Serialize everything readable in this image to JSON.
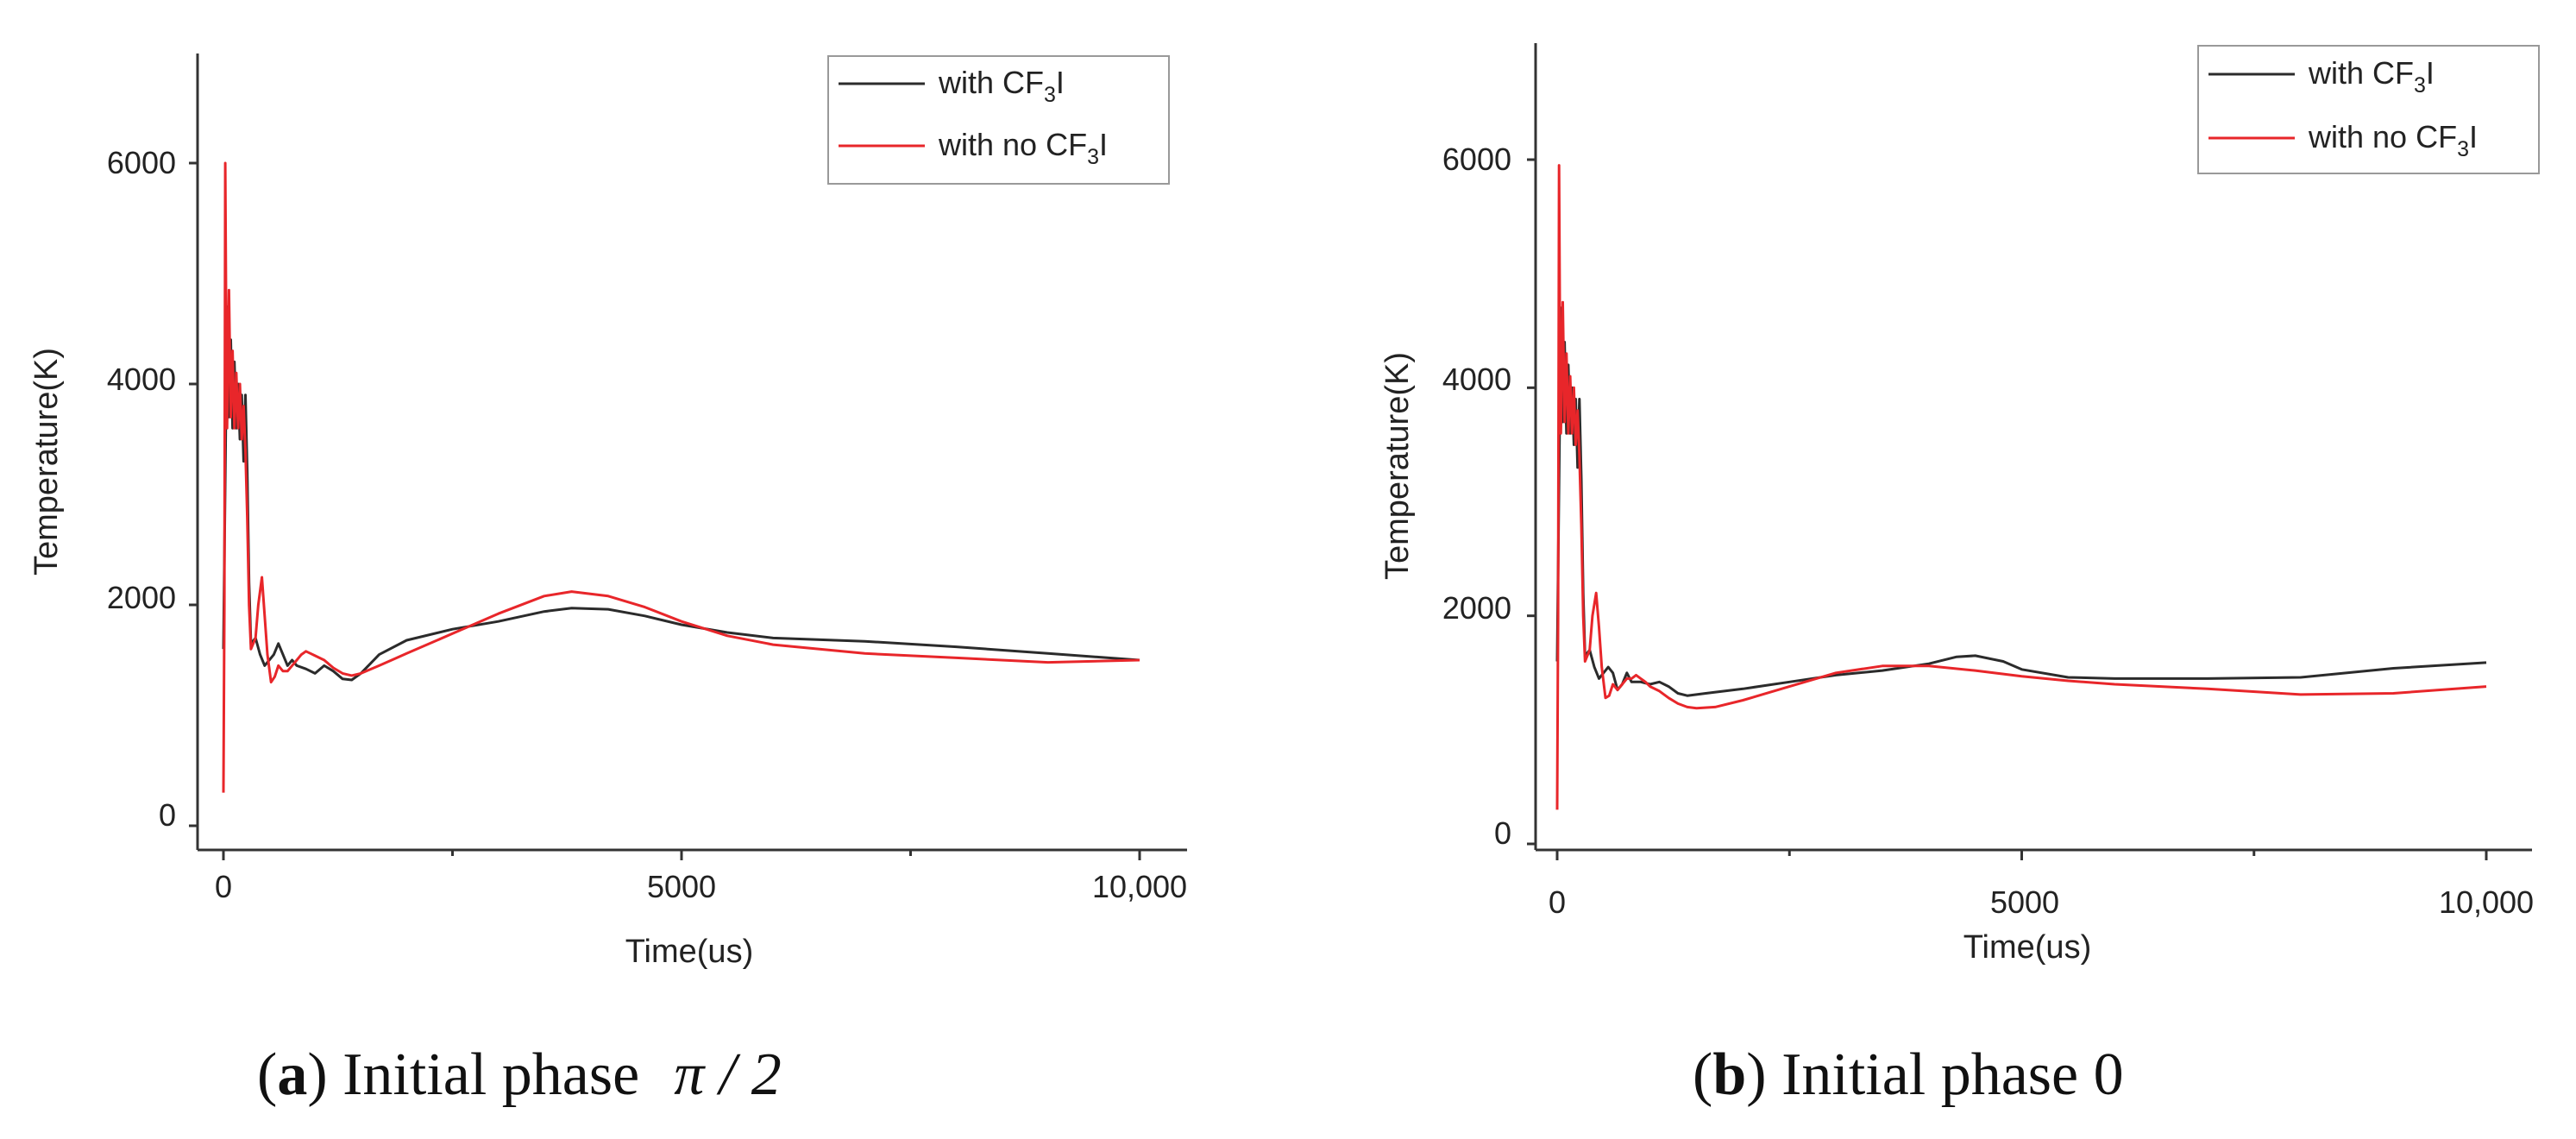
{
  "chart_data": [
    {
      "type": "line",
      "caption": {
        "label": "a",
        "text": "Initial phase",
        "phase": "π / 2"
      },
      "xlabel": "Time(us)",
      "ylabel": "Temperature(K)",
      "xlim": [
        -300,
        10500
      ],
      "ylim": [
        -300,
        7000
      ],
      "xticks": [
        0,
        5000,
        10000
      ],
      "xtick_labels": [
        "0",
        "5000",
        "10,000"
      ],
      "yticks": [
        0,
        2000,
        4000,
        6000
      ],
      "ytick_labels": [
        "0",
        "2000",
        "4000",
        "6000"
      ],
      "legend": {
        "position": "top-right",
        "entries": [
          {
            "prefix": "with CF",
            "sub": "3",
            "suffix": "I"
          },
          {
            "prefix": "with no CF",
            "sub": "3",
            "suffix": "I"
          }
        ]
      },
      "series": [
        {
          "name": "with CF3I",
          "color": "#2b2b2b",
          "x": [
            0,
            40,
            60,
            80,
            100,
            120,
            140,
            160,
            180,
            200,
            220,
            240,
            260,
            280,
            300,
            350,
            400,
            450,
            500,
            550,
            600,
            650,
            700,
            750,
            800,
            900,
            1000,
            1100,
            1200,
            1300,
            1400,
            1500,
            1700,
            2000,
            2500,
            3000,
            3500,
            3800,
            4200,
            4600,
            5000,
            5500,
            6000,
            7000,
            8000,
            9000,
            10000
          ],
          "y": [
            1600,
            4700,
            3700,
            4400,
            3600,
            4200,
            3600,
            4000,
            3500,
            3900,
            3300,
            3900,
            3200,
            2200,
            1650,
            1700,
            1550,
            1450,
            1500,
            1550,
            1650,
            1550,
            1450,
            1500,
            1450,
            1420,
            1380,
            1450,
            1400,
            1330,
            1320,
            1380,
            1550,
            1680,
            1780,
            1850,
            1940,
            1970,
            1960,
            1900,
            1820,
            1750,
            1700,
            1670,
            1620,
            1560,
            1500
          ]
        },
        {
          "name": "with no CF3I",
          "color": "#e8262a",
          "x": [
            0,
            10,
            20,
            30,
            40,
            60,
            80,
            100,
            120,
            140,
            160,
            180,
            200,
            220,
            240,
            260,
            280,
            300,
            350,
            380,
            420,
            450,
            480,
            520,
            560,
            600,
            650,
            700,
            750,
            800,
            850,
            900,
            950,
            1000,
            1100,
            1200,
            1300,
            1400,
            1500,
            1700,
            2000,
            2500,
            3000,
            3500,
            3800,
            4200,
            4600,
            5000,
            5500,
            6000,
            7000,
            8000,
            9000,
            10000
          ],
          "y": [
            300,
            2000,
            6000,
            4500,
            3600,
            4850,
            3700,
            4300,
            3600,
            4100,
            3600,
            4000,
            3500,
            3800,
            3400,
            2800,
            2000,
            1600,
            1700,
            2000,
            2250,
            1900,
            1550,
            1300,
            1350,
            1450,
            1400,
            1400,
            1450,
            1500,
            1550,
            1580,
            1560,
            1540,
            1500,
            1430,
            1380,
            1360,
            1380,
            1450,
            1560,
            1740,
            1920,
            2080,
            2120,
            2080,
            1980,
            1850,
            1720,
            1640,
            1560,
            1520,
            1480,
            1500
          ]
        }
      ]
    },
    {
      "type": "line",
      "caption": {
        "label": "b",
        "text": "Initial phase 0"
      },
      "xlabel": "Time(us)",
      "ylabel": "Temperature(K)",
      "xlim": [
        -300,
        10500
      ],
      "ylim": [
        -300,
        7000
      ],
      "xticks": [
        0,
        5000,
        10000
      ],
      "xtick_labels": [
        "0",
        "5000",
        "10,000"
      ],
      "yticks": [
        0,
        2000,
        4000,
        6000
      ],
      "ytick_labels": [
        "0",
        "2000",
        "4000",
        "6000"
      ],
      "legend": {
        "position": "top-right",
        "entries": [
          {
            "prefix": "with CF",
            "sub": "3",
            "suffix": "I"
          },
          {
            "prefix": "with no CF",
            "sub": "3",
            "suffix": "I"
          }
        ]
      },
      "series": [
        {
          "name": "with CF3I",
          "color": "#2b2b2b",
          "x": [
            0,
            40,
            60,
            80,
            100,
            120,
            140,
            160,
            180,
            200,
            220,
            240,
            260,
            280,
            300,
            350,
            400,
            450,
            500,
            550,
            600,
            650,
            700,
            750,
            800,
            900,
            1000,
            1100,
            1200,
            1300,
            1400,
            1600,
            2000,
            2500,
            3000,
            3500,
            4000,
            4300,
            4500,
            4800,
            5000,
            5500,
            6000,
            7000,
            8000,
            9000,
            10000
          ],
          "y": [
            1600,
            4700,
            3700,
            4400,
            3600,
            4200,
            3600,
            4000,
            3500,
            3900,
            3300,
            3900,
            3200,
            2200,
            1650,
            1700,
            1550,
            1450,
            1500,
            1550,
            1500,
            1350,
            1400,
            1500,
            1420,
            1420,
            1400,
            1420,
            1380,
            1320,
            1300,
            1320,
            1360,
            1420,
            1480,
            1520,
            1580,
            1640,
            1650,
            1600,
            1530,
            1460,
            1450,
            1450,
            1460,
            1540,
            1590
          ]
        },
        {
          "name": "with no CF3I",
          "color": "#e8262a",
          "x": [
            0,
            10,
            20,
            30,
            40,
            60,
            80,
            100,
            120,
            140,
            160,
            180,
            200,
            220,
            240,
            260,
            280,
            300,
            350,
            380,
            420,
            450,
            480,
            520,
            560,
            600,
            650,
            700,
            750,
            800,
            850,
            900,
            950,
            1000,
            1100,
            1200,
            1300,
            1400,
            1500,
            1700,
            2000,
            2500,
            3000,
            3500,
            4000,
            4500,
            5000,
            5500,
            6000,
            7000,
            8000,
            9000,
            10000
          ],
          "y": [
            300,
            2000,
            5950,
            4500,
            3600,
            4750,
            3700,
            4300,
            3600,
            4100,
            3600,
            4000,
            3500,
            3800,
            3400,
            2800,
            2000,
            1600,
            1700,
            2000,
            2200,
            1900,
            1550,
            1280,
            1300,
            1400,
            1350,
            1400,
            1450,
            1450,
            1480,
            1450,
            1420,
            1380,
            1340,
            1280,
            1230,
            1200,
            1190,
            1200,
            1260,
            1380,
            1500,
            1560,
            1560,
            1520,
            1470,
            1430,
            1400,
            1360,
            1310,
            1320,
            1380
          ]
        }
      ]
    }
  ]
}
